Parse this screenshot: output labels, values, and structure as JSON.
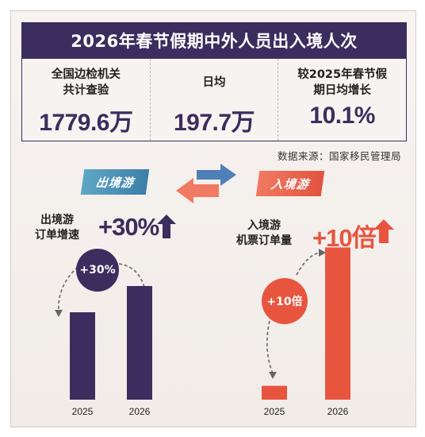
{
  "header": {
    "title": "2026年春节假期中外人员出入境人次"
  },
  "stats": [
    {
      "label_line1": "全国边检机关",
      "label_line2": "共计查验",
      "value": "1779.6万"
    },
    {
      "label_line1": "日均",
      "label_line2": "",
      "value": "197.7万"
    },
    {
      "label_line1": "较2025年春节假",
      "label_line2": "期日均增长",
      "value": "10.1%"
    }
  ],
  "source": "数据来源：国家移民管理局",
  "colors": {
    "navy": "#3b2d5e",
    "orange": "#e8553f",
    "blue": "#4f7fb8"
  },
  "outbound": {
    "tag": "出境游",
    "label_line1": "出境游",
    "label_line2": "订单增速",
    "value": "+30%",
    "badge": "+30%"
  },
  "inbound": {
    "tag": "入境游",
    "label_line1": "入境游",
    "label_line2": "机票订单量",
    "value": "+10倍",
    "badge": "+10倍"
  },
  "chart_data": [
    {
      "type": "bar",
      "categories": [
        "2025",
        "2026"
      ],
      "values": [
        1.0,
        1.3
      ],
      "ylim": [
        0,
        1.5
      ]
    },
    {
      "type": "bar",
      "categories": [
        "2025",
        "2026"
      ],
      "values": [
        1,
        11
      ],
      "ylim": [
        0,
        12
      ]
    }
  ]
}
